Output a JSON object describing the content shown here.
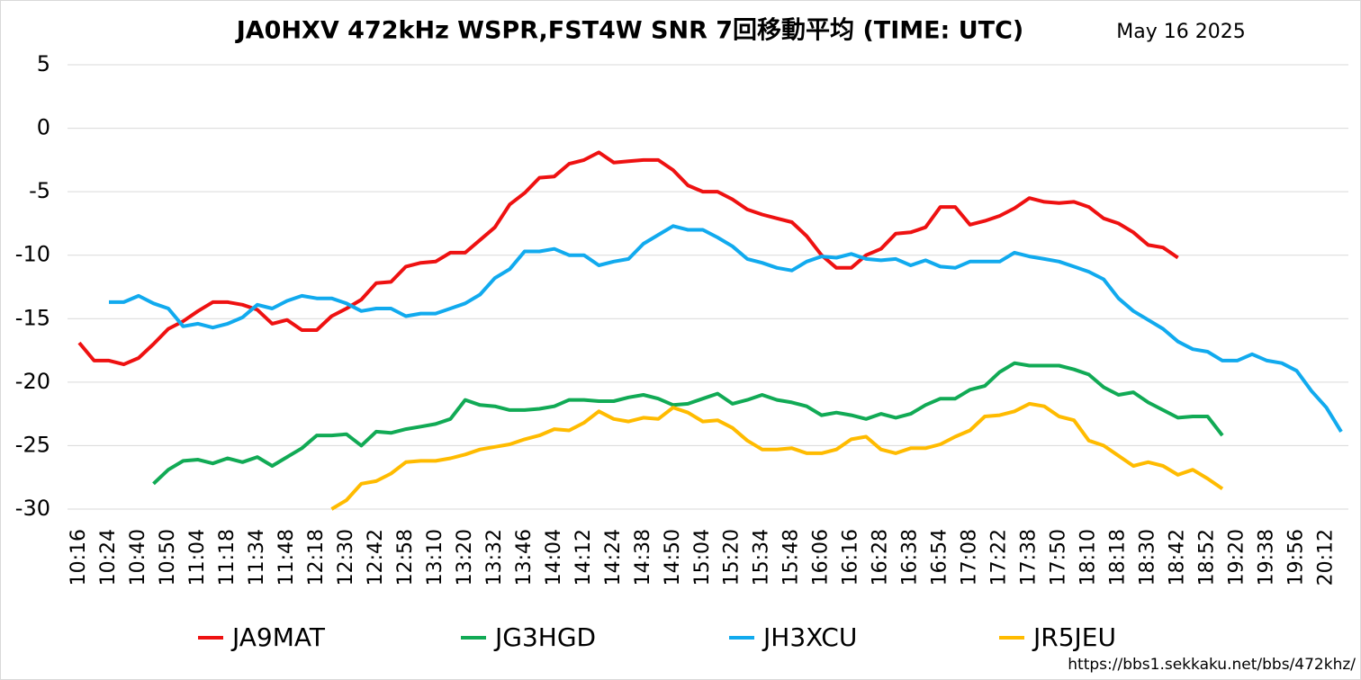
{
  "chart_data": {
    "type": "line",
    "title": "JA0HXV 472kHz WSPR,FST4W SNR 7回移動平均 (TIME: UTC)",
    "date": "May 16 2025",
    "source": "https://bbs1.sekkaku.net/bbs/472khz/",
    "categories": [
      "10:16",
      null,
      "10:24",
      null,
      "10:40",
      null,
      "10:50",
      null,
      "11:04",
      null,
      "11:18",
      null,
      "11:34",
      null,
      "11:48",
      null,
      "12:18",
      null,
      "12:30",
      null,
      "12:42",
      null,
      "12:58",
      null,
      "13:10",
      null,
      "13:20",
      null,
      "13:32",
      null,
      "13:46",
      null,
      "14:04",
      null,
      "14:12",
      null,
      "14:24",
      null,
      "14:38",
      null,
      "14:50",
      null,
      "15:04",
      null,
      "15:20",
      null,
      "15:34",
      null,
      "15:48",
      null,
      "16:06",
      null,
      "16:16",
      null,
      "16:28",
      null,
      "16:38",
      null,
      "16:54",
      null,
      "17:08",
      null,
      "17:22",
      null,
      "17:38",
      null,
      "17:50",
      null,
      "18:10",
      null,
      "18:18",
      null,
      "18:30",
      null,
      "18:42",
      null,
      "18:52",
      null,
      "19:20",
      null,
      "19:38",
      null,
      "19:56",
      null,
      "20:12",
      null
    ],
    "ylim": [
      -30,
      5
    ],
    "yticks": [
      -30,
      -25,
      -20,
      -15,
      -10,
      -5,
      0,
      5
    ],
    "grid": true,
    "legend": "bottom",
    "series": [
      {
        "name": "JA9MAT",
        "color": "#ee1111",
        "values": [
          -16.9,
          -18.3,
          -18.3,
          -18.6,
          -18.1,
          -17.0,
          -15.8,
          -15.2,
          -14.4,
          -13.7,
          -13.7,
          -13.9,
          -14.3,
          -15.4,
          -15.1,
          -15.9,
          -15.9,
          -14.8,
          -14.2,
          -13.5,
          -12.2,
          -12.1,
          -10.9,
          -10.6,
          -10.5,
          -9.8,
          -9.8,
          -8.8,
          -7.8,
          -6.0,
          -5.1,
          -3.9,
          -3.8,
          -2.8,
          -2.5,
          -1.9,
          -2.7,
          -2.6,
          -2.5,
          -2.5,
          -3.3,
          -4.5,
          -5.0,
          -5.0,
          -5.6,
          -6.4,
          -6.8,
          -7.1,
          -7.4,
          -8.5,
          -10.0,
          -11.0,
          -11.0,
          -10.0,
          -9.5,
          -8.3,
          -8.2,
          -7.8,
          -6.2,
          -6.2,
          -7.6,
          -7.3,
          -6.9,
          -6.3,
          -5.5,
          -5.8,
          -5.9,
          -5.8,
          -6.2,
          -7.1,
          -7.5,
          -8.2,
          -9.2,
          -9.4,
          -10.2,
          null,
          null,
          null,
          null,
          null,
          null,
          null,
          null,
          null,
          null,
          null
        ]
      },
      {
        "name": "JG3HGD",
        "color": "#11aa55",
        "values": [
          null,
          null,
          null,
          null,
          null,
          -28.0,
          -26.9,
          -26.2,
          -26.1,
          -26.4,
          -26.0,
          -26.3,
          -25.9,
          -26.6,
          -25.9,
          -25.2,
          -24.2,
          -24.2,
          -24.1,
          -25.0,
          -23.9,
          -24.0,
          -23.7,
          -23.5,
          -23.3,
          -22.9,
          -21.4,
          -21.8,
          -21.9,
          -22.2,
          -22.2,
          -22.1,
          -21.9,
          -21.4,
          -21.4,
          -21.5,
          -21.5,
          -21.2,
          -21.0,
          -21.3,
          -21.8,
          -21.7,
          -21.3,
          -20.9,
          -21.7,
          -21.4,
          -21.0,
          -21.4,
          -21.6,
          -21.9,
          -22.6,
          -22.4,
          -22.6,
          -22.9,
          -22.5,
          -22.8,
          -22.5,
          -21.8,
          -21.3,
          -21.3,
          -20.6,
          -20.3,
          -19.2,
          -18.5,
          -18.7,
          -18.7,
          -18.7,
          -19.0,
          -19.4,
          -20.4,
          -21.0,
          -20.8,
          -21.6,
          -22.2,
          -22.8,
          -22.7,
          -22.7,
          -24.2,
          null,
          null,
          null,
          null,
          null,
          null,
          null,
          null
        ]
      },
      {
        "name": "JH3XCU",
        "color": "#11aaee",
        "values": [
          null,
          null,
          -13.7,
          -13.7,
          -13.2,
          -13.8,
          -14.2,
          -15.6,
          -15.4,
          -15.7,
          -15.4,
          -14.9,
          -13.9,
          -14.2,
          -13.6,
          -13.2,
          -13.4,
          -13.4,
          -13.8,
          -14.4,
          -14.2,
          -14.2,
          -14.8,
          -14.6,
          -14.6,
          -14.2,
          -13.8,
          -13.1,
          -11.8,
          -11.1,
          -9.7,
          -9.7,
          -9.5,
          -10.0,
          -10.0,
          -10.8,
          -10.5,
          -10.3,
          -9.1,
          -8.4,
          -7.7,
          -8.0,
          -8.0,
          -8.6,
          -9.3,
          -10.3,
          -10.6,
          -11.0,
          -11.2,
          -10.5,
          -10.1,
          -10.2,
          -9.9,
          -10.3,
          -10.4,
          -10.3,
          -10.8,
          -10.4,
          -10.9,
          -11.0,
          -10.5,
          -10.5,
          -10.5,
          -9.8,
          -10.1,
          -10.3,
          -10.5,
          -10.9,
          -11.3,
          -11.9,
          -13.4,
          -14.4,
          -15.1,
          -15.8,
          -16.8,
          -17.4,
          -17.6,
          -18.3,
          -18.3,
          -17.8,
          -18.3,
          -18.5,
          -19.1,
          -20.7,
          -22.0,
          -23.9
        ]
      },
      {
        "name": "JR5JEU",
        "color": "#ffbb00",
        "values": [
          null,
          null,
          null,
          null,
          null,
          null,
          null,
          null,
          null,
          null,
          null,
          null,
          null,
          null,
          null,
          null,
          null,
          -30.0,
          -29.3,
          -28.0,
          -27.8,
          -27.2,
          -26.3,
          -26.2,
          -26.2,
          -26.0,
          -25.7,
          -25.3,
          -25.1,
          -24.9,
          -24.5,
          -24.2,
          -23.7,
          -23.8,
          -23.2,
          -22.3,
          -22.9,
          -23.1,
          -22.8,
          -22.9,
          -22.0,
          -22.4,
          -23.1,
          -23.0,
          -23.6,
          -24.6,
          -25.3,
          -25.3,
          -25.2,
          -25.6,
          -25.6,
          -25.3,
          -24.5,
          -24.3,
          -25.3,
          -25.6,
          -25.2,
          -25.2,
          -24.9,
          -24.3,
          -23.8,
          -22.7,
          -22.6,
          -22.3,
          -21.7,
          -21.9,
          -22.7,
          -23.0,
          -24.6,
          -25.0,
          -25.8,
          -26.6,
          -26.3,
          -26.6,
          -27.3,
          -26.9,
          -27.6,
          -28.4,
          null,
          null,
          null,
          null,
          null,
          null,
          null,
          null
        ]
      }
    ]
  }
}
